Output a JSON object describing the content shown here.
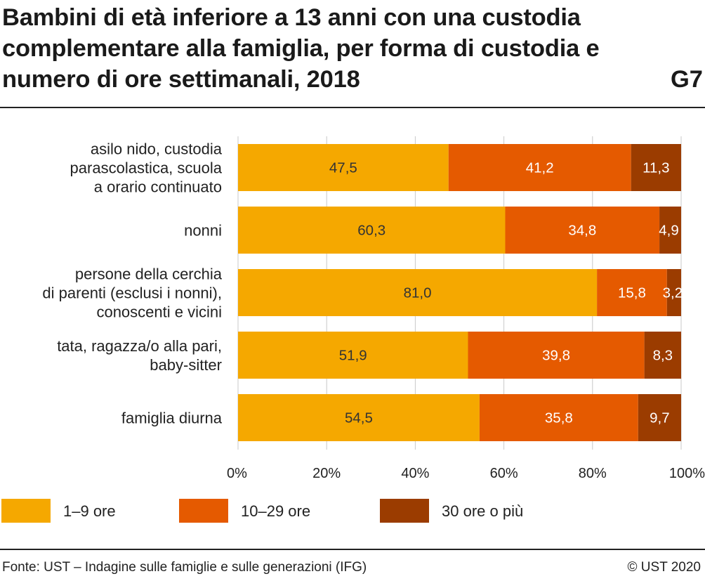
{
  "header": {
    "title": "Bambini di età inferiore a 13 anni con una custodia complementare alla famiglia, per forma di custodia e numero di ore settimanali, 2018",
    "figure_number": "G7"
  },
  "footer": {
    "source": "Fonte: UST – Indagine sulle famiglie e sulle generazioni (IFG)",
    "copyright": "© UST 2020"
  },
  "chart_data": {
    "type": "bar",
    "orientation": "horizontal",
    "stacked": true,
    "categories": [
      [
        "asilo nido, custodia",
        "parascolastica, scuola",
        "a orario continuato"
      ],
      [
        "nonni"
      ],
      [
        "persone della cerchia",
        "di parenti (esclusi i nonni),",
        "conoscenti e vicini"
      ],
      [
        "tata, ragazza/o alla pari,",
        "baby-sitter"
      ],
      [
        "famiglia diurna"
      ]
    ],
    "series": [
      {
        "name": "1–9 ore",
        "color": "#F5A800",
        "label_color": "#333333",
        "values": [
          47.5,
          60.3,
          81.0,
          51.9,
          54.5
        ],
        "labels": [
          "47,5",
          "60,3",
          "81,0",
          "51,9",
          "54,5"
        ]
      },
      {
        "name": "10–29 ore",
        "color": "#E55A00",
        "label_color": "#ffffff",
        "values": [
          41.2,
          34.8,
          15.8,
          39.8,
          35.8
        ],
        "labels": [
          "41,2",
          "34,8",
          "15,8",
          "39,8",
          "35,8"
        ]
      },
      {
        "name": "30 ore o più",
        "color": "#9B3C00",
        "label_color": "#ffffff",
        "values": [
          11.3,
          4.9,
          3.2,
          8.3,
          9.7
        ],
        "labels": [
          "11,3",
          "4,9",
          "3,2",
          "8,3",
          "9,7"
        ]
      }
    ],
    "xlim": [
      0,
      100
    ],
    "xticks": [
      0,
      20,
      40,
      60,
      80,
      100
    ],
    "xtick_labels": [
      "0%",
      "20%",
      "40%",
      "60%",
      "80%",
      "100%"
    ],
    "grid": true,
    "legend_position": "bottom",
    "background_color": "#ffffff",
    "grid_color": "#c8c8c8"
  }
}
